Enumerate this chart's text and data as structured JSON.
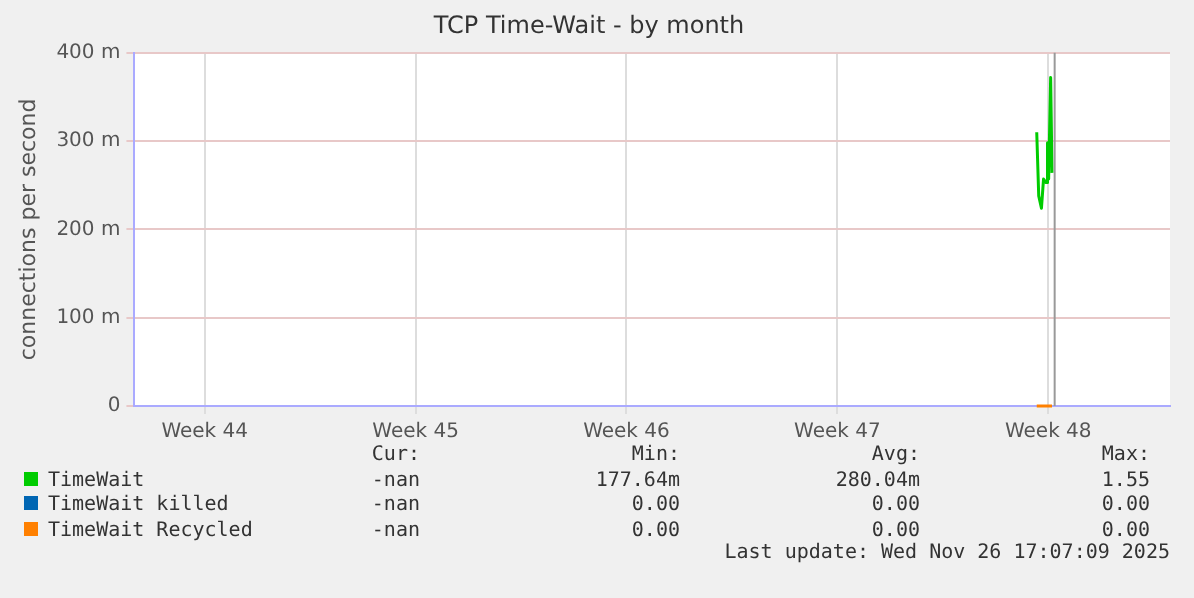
{
  "chart_data": {
    "type": "line",
    "title": "TCP Time-Wait - by month",
    "ylabel": "connections per second",
    "x": [
      "2025-11-26T02:50",
      "2025-11-26T04:25",
      "2025-11-26T06:35",
      "2025-11-26T08:15",
      "2025-11-26T10:15",
      "2025-11-26T11:25",
      "2025-11-26T12:20",
      "2025-11-26T13:55",
      "2025-11-26T15:00"
    ],
    "series": [
      {
        "name": "TimeWait",
        "color": "#00cc00",
        "values": [
          310,
          238,
          224,
          257,
          253,
          298,
          257,
          372,
          264
        ]
      },
      {
        "name": "TimeWait killed",
        "color": "#0066b3",
        "values": [
          null,
          null,
          null,
          null,
          null,
          null,
          null,
          null,
          null
        ]
      },
      {
        "name": "TimeWait Recycled",
        "color": "#ff8000",
        "values": [
          0,
          0,
          0,
          0,
          0,
          0,
          0,
          0,
          0
        ]
      }
    ],
    "xlim": [
      "2025-10-27T04:00",
      "2025-11-30T13:00"
    ],
    "xticks": [
      {
        "value": "2025-10-29T12:00",
        "label": "Week 44"
      },
      {
        "value": "2025-11-05T12:00",
        "label": "Week 45"
      },
      {
        "value": "2025-11-12T12:00",
        "label": "Week 46"
      },
      {
        "value": "2025-11-19T12:00",
        "label": "Week 47"
      },
      {
        "value": "2025-11-26T12:00",
        "label": "Week 48"
      }
    ],
    "ylim": [
      0,
      400
    ],
    "yticks": [
      0,
      {
        "value": 100,
        "label": "100 m"
      },
      {
        "value": 200,
        "label": "200 m"
      },
      {
        "value": 300,
        "label": "300 m"
      },
      {
        "value": 400,
        "label": "400 m"
      }
    ],
    "ref_lines": [
      {
        "axis": "x",
        "value": "2025-11-26T17:07",
        "color": "#999999"
      }
    ],
    "grid": true,
    "legend": "bottom",
    "marker": "none",
    "line_style": "solid",
    "annotations": [
      "Cur:",
      "Min:",
      "Avg:",
      "Max:",
      "-nan",
      "177.64m",
      "280.04m",
      "1.55",
      "-nan",
      "0.00",
      "0.00",
      "0.00",
      "-nan",
      "0.00",
      "0.00",
      "0.00",
      "Last update: Wed Nov 26 17:07:09 2025"
    ]
  }
}
